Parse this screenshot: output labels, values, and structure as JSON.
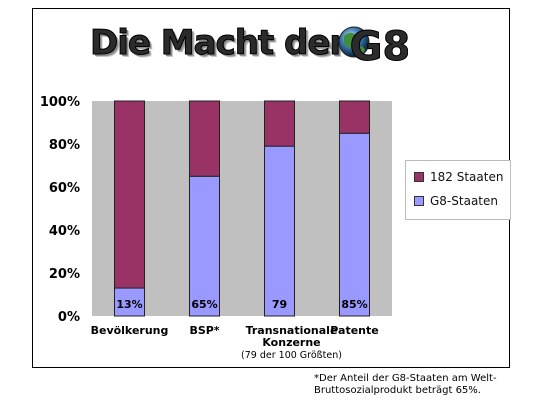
{
  "page": {
    "title_text": "Die Macht der",
    "logo_text": "G8"
  },
  "chart_data": {
    "type": "bar",
    "stacked": true,
    "categories": [
      "Bevölkerung",
      "BSP*",
      "Transnationale Konzerne",
      "Patente"
    ],
    "category_sublabels": [
      "",
      "",
      "(79 der 100 Größten)",
      ""
    ],
    "series": [
      {
        "name": "G8-Staaten",
        "values": [
          13,
          65,
          79,
          85
        ],
        "color": "#9999ff"
      },
      {
        "name": "182 Staaten",
        "values": [
          87,
          35,
          21,
          15
        ],
        "color": "#993366"
      }
    ],
    "data_labels": [
      "13%",
      "65%",
      "79",
      "85%"
    ],
    "y_ticks": [
      "0%",
      "20%",
      "40%",
      "60%",
      "80%",
      "100%"
    ],
    "ylim": [
      0,
      100
    ],
    "grid": false,
    "plot_background": "#c0c0c0",
    "legend": {
      "position": "right",
      "entries": [
        {
          "label": "182 Staaten",
          "color": "#993366"
        },
        {
          "label": "G8-Staaten",
          "color": "#9999ff"
        }
      ]
    }
  },
  "footnote": {
    "line1": "*Der Anteil der G8-Staaten am Welt-",
    "line2": "Bruttosozialprodukt beträgt 65%."
  }
}
